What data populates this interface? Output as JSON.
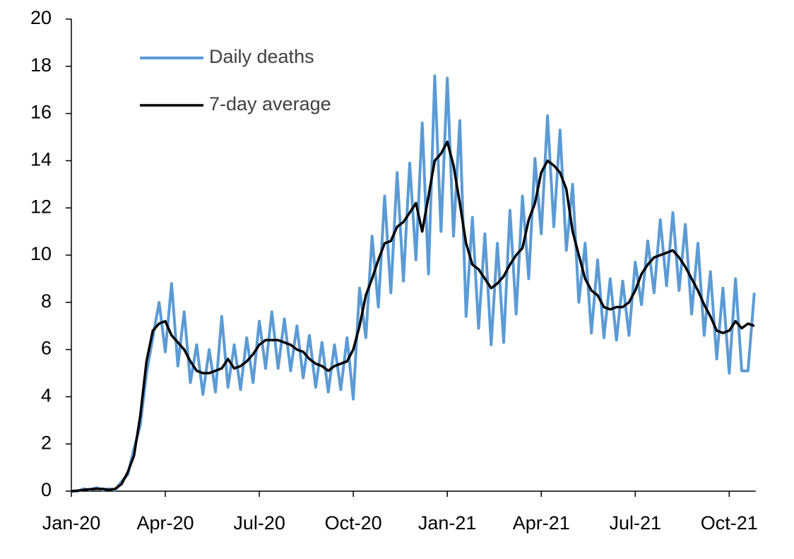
{
  "chart_data": {
    "type": "line",
    "x": [
      0,
      0.2,
      0.4,
      0.6,
      0.8,
      1,
      1.2,
      1.4,
      1.6,
      1.8,
      2,
      2.2,
      2.4,
      2.6,
      2.8,
      3,
      3.2,
      3.4,
      3.6,
      3.8,
      4,
      4.2,
      4.4,
      4.6,
      4.8,
      5,
      5.2,
      5.4,
      5.6,
      5.8,
      6,
      6.2,
      6.4,
      6.6,
      6.8,
      7,
      7.2,
      7.4,
      7.6,
      7.8,
      8,
      8.2,
      8.4,
      8.6,
      8.8,
      9,
      9.2,
      9.4,
      9.6,
      9.8,
      10,
      10.2,
      10.4,
      10.6,
      10.8,
      11,
      11.2,
      11.4,
      11.6,
      11.8,
      12,
      12.2,
      12.4,
      12.6,
      12.8,
      13,
      13.2,
      13.4,
      13.6,
      13.8,
      14,
      14.2,
      14.4,
      14.6,
      14.8,
      15,
      15.2,
      15.4,
      15.6,
      15.8,
      16,
      16.2,
      16.4,
      16.6,
      16.8,
      17,
      17.2,
      17.4,
      17.6,
      17.8,
      18,
      18.2,
      18.4,
      18.6,
      18.8,
      19,
      19.2,
      19.4,
      19.6,
      19.8,
      20,
      20.2,
      20.4,
      20.6,
      20.8,
      21,
      21.2,
      21.4,
      21.6,
      21.8
    ],
    "series": [
      {
        "name": "Daily deaths",
        "color": "#5b9bd5",
        "width": 4,
        "values": [
          0,
          0,
          0.1,
          0.05,
          0.15,
          0.05,
          0.1,
          0.05,
          0.4,
          0.7,
          1.8,
          2.8,
          5.0,
          6.5,
          8.0,
          5.9,
          8.8,
          5.3,
          7.6,
          4.6,
          6.2,
          4.1,
          6.0,
          4.2,
          7.4,
          4.4,
          6.2,
          4.3,
          6.5,
          4.6,
          7.2,
          5.2,
          7.6,
          5.2,
          7.3,
          5.1,
          7.0,
          4.8,
          6.6,
          4.4,
          6.3,
          4.2,
          6.2,
          4.3,
          6.5,
          3.9,
          8.6,
          6.5,
          10.8,
          7.8,
          12.5,
          8.4,
          13.5,
          8.9,
          13.9,
          9.8,
          15.6,
          9.2,
          17.6,
          11.0,
          17.5,
          10.8,
          15.7,
          7.4,
          11.6,
          6.9,
          10.9,
          6.2,
          10.5,
          6.3,
          11.9,
          7.5,
          12.5,
          9.0,
          14.1,
          10.9,
          15.9,
          11.2,
          15.3,
          10.2,
          13.0,
          8.0,
          10.5,
          6.7,
          9.8,
          6.5,
          9.0,
          6.4,
          8.9,
          6.6,
          9.7,
          7.9,
          10.6,
          8.4,
          11.5,
          8.7,
          11.8,
          8.5,
          11.3,
          7.5,
          10.5,
          6.6,
          9.3,
          5.6,
          8.6,
          5.0,
          9.0,
          5.1,
          5.1,
          8.4
        ]
      },
      {
        "name": "7-day average",
        "color": "#000000",
        "width": 3.5,
        "values": [
          0,
          0.02,
          0.05,
          0.08,
          0.1,
          0.1,
          0.05,
          0.1,
          0.3,
          0.8,
          1.5,
          3.2,
          5.5,
          6.8,
          7.1,
          7.2,
          6.6,
          6.3,
          6.0,
          5.5,
          5.1,
          5.0,
          5.0,
          5.1,
          5.2,
          5.6,
          5.2,
          5.3,
          5.5,
          5.8,
          6.2,
          6.4,
          6.4,
          6.4,
          6.3,
          6.2,
          6.0,
          5.9,
          5.6,
          5.4,
          5.3,
          5.1,
          5.3,
          5.4,
          5.5,
          6.0,
          7.0,
          8.3,
          9.0,
          9.8,
          10.5,
          10.6,
          11.2,
          11.4,
          11.8,
          12.2,
          11.0,
          12.5,
          14.0,
          14.3,
          14.8,
          13.8,
          12.2,
          10.5,
          9.6,
          9.4,
          9.0,
          8.6,
          8.8,
          9.1,
          9.6,
          10.0,
          10.3,
          11.5,
          12.2,
          13.5,
          14.0,
          13.8,
          13.5,
          12.8,
          11.0,
          10.0,
          9.0,
          8.5,
          8.3,
          7.8,
          7.7,
          7.8,
          7.8,
          8.0,
          8.5,
          9.2,
          9.6,
          9.9,
          10.0,
          10.1,
          10.2,
          9.9,
          9.5,
          9.0,
          8.5,
          7.9,
          7.4,
          6.8,
          6.7,
          6.8,
          7.2,
          6.9,
          7.1,
          7.0
        ]
      }
    ],
    "xlim": [
      0,
      21.85
    ],
    "xticks": [
      {
        "value": 0,
        "label": "Jan-20"
      },
      {
        "value": 3,
        "label": "Apr-20"
      },
      {
        "value": 6,
        "label": "Jul-20"
      },
      {
        "value": 9,
        "label": "Oct-20"
      },
      {
        "value": 12,
        "label": "Jan-21"
      },
      {
        "value": 15,
        "label": "Apr-21"
      },
      {
        "value": 18,
        "label": "Jul-21"
      },
      {
        "value": 21,
        "label": "Oct-21"
      }
    ],
    "ylim": [
      0,
      20
    ],
    "yticks": [
      0,
      2,
      4,
      6,
      8,
      10,
      12,
      14,
      16,
      18,
      20
    ],
    "legend": "top-left"
  }
}
